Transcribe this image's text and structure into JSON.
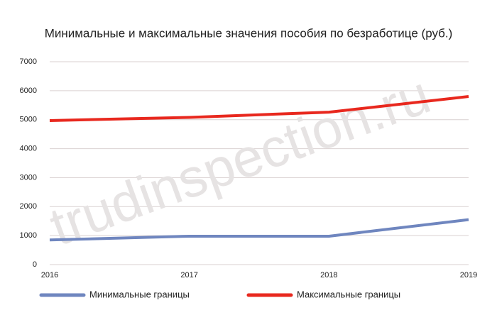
{
  "chart_data": {
    "type": "line",
    "title": "Минимальные и максимальные значения пособия по безработице (руб.)",
    "watermark": "trudinspection.ru",
    "x": [
      2016,
      2017,
      2018,
      2019
    ],
    "xlim": [
      2016,
      2019
    ],
    "xticks": [
      2016,
      2017,
      2018,
      2019
    ],
    "ylim": [
      0,
      7000
    ],
    "yticks": [
      0,
      1000,
      2000,
      3000,
      4000,
      5000,
      6000,
      7000
    ],
    "grid": true,
    "legend": "bottom",
    "series": [
      {
        "name": "Минимальные границы",
        "color": "#6f86bf",
        "values": [
          850,
          980,
          980,
          1550
        ]
      },
      {
        "name": "Максимальные границы",
        "color": "#e8281e",
        "values": [
          4970,
          5080,
          5260,
          5800
        ]
      }
    ]
  }
}
